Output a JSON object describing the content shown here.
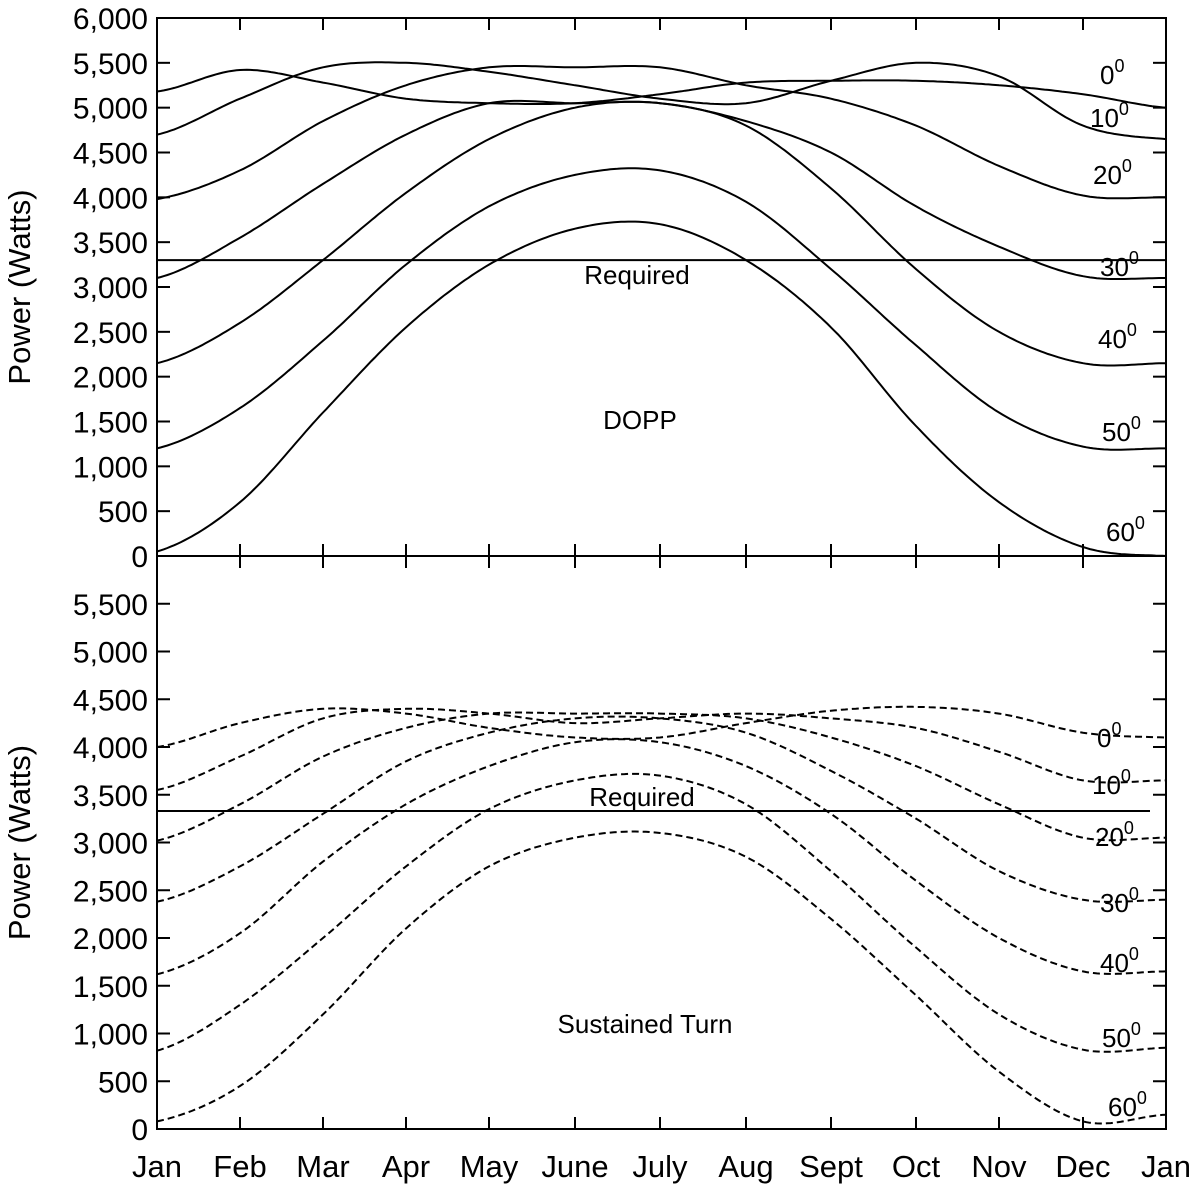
{
  "chart_data": [
    {
      "type": "line",
      "panel": "top",
      "title": "",
      "annotation": "DOPP",
      "required_label": "Required",
      "xlabel": "",
      "ylabel": "Power (Watts)",
      "ylim": [
        0,
        6000
      ],
      "yticks": [
        0,
        500,
        1000,
        1500,
        2000,
        2500,
        3000,
        3500,
        4000,
        4500,
        5000,
        5500,
        6000
      ],
      "ytick_labels": [
        "0",
        "500",
        "1,000",
        "1,500",
        "2,000",
        "2,500",
        "3,000",
        "3,500",
        "4,000",
        "4,500",
        "5,000",
        "5,500",
        "6,000"
      ],
      "line_style": "solid",
      "required": 3300,
      "x": [
        "Jan",
        "Feb",
        "Mar",
        "Apr",
        "May",
        "June",
        "July",
        "Aug",
        "Sept",
        "Oct",
        "Nov",
        "Dec",
        "Jan"
      ],
      "series": [
        {
          "name": "0",
          "values": [
            5180,
            5420,
            5280,
            5100,
            5050,
            5050,
            5150,
            5280,
            5300,
            5300,
            5250,
            5150,
            5000
          ]
        },
        {
          "name": "10",
          "values": [
            4700,
            5100,
            5450,
            5500,
            5400,
            5250,
            5100,
            5050,
            5300,
            5500,
            5350,
            4800,
            4650
          ]
        },
        {
          "name": "20",
          "values": [
            3980,
            4300,
            4850,
            5250,
            5450,
            5450,
            5450,
            5250,
            5100,
            4800,
            4350,
            4020,
            4000
          ]
        },
        {
          "name": "30",
          "values": [
            3100,
            3550,
            4150,
            4700,
            5050,
            5050,
            5050,
            4850,
            4500,
            3900,
            3450,
            3120,
            3100
          ]
        },
        {
          "name": "40",
          "values": [
            2150,
            2600,
            3300,
            4050,
            4650,
            5000,
            5050,
            4800,
            4100,
            3200,
            2500,
            2150,
            2150
          ]
        },
        {
          "name": "50",
          "values": [
            1200,
            1650,
            2400,
            3250,
            3900,
            4250,
            4300,
            3950,
            3200,
            2350,
            1600,
            1220,
            1200
          ]
        },
        {
          "name": "60",
          "values": [
            50,
            600,
            1600,
            2550,
            3250,
            3650,
            3700,
            3300,
            2550,
            1450,
            600,
            100,
            0
          ]
        }
      ],
      "curve_labels": [
        {
          "text": "0",
          "sup": "0"
        },
        {
          "text": "10",
          "sup": "0"
        },
        {
          "text": "20",
          "sup": "0"
        },
        {
          "text": "30",
          "sup": "0"
        },
        {
          "text": "40",
          "sup": "0"
        },
        {
          "text": "50",
          "sup": "0"
        },
        {
          "text": "60",
          "sup": "0"
        }
      ]
    },
    {
      "type": "line",
      "panel": "bottom",
      "title": "",
      "annotation": "Sustained Turn",
      "required_label": "Required",
      "xlabel": "",
      "ylabel": "Power (Watts)",
      "ylim": [
        0,
        6000
      ],
      "yticks": [
        0,
        500,
        1000,
        1500,
        2000,
        2500,
        3000,
        3500,
        4000,
        4500,
        5000,
        5500
      ],
      "ytick_labels": [
        "0",
        "500",
        "1,000",
        "1,500",
        "2,000",
        "2,500",
        "3,000",
        "3,500",
        "4,000",
        "4,500",
        "5,000",
        "5,500"
      ],
      "line_style": "dashed",
      "required": 3330,
      "x": [
        "Jan",
        "Feb",
        "Mar",
        "Apr",
        "May",
        "June",
        "July",
        "Aug",
        "Sept",
        "Oct",
        "Nov",
        "Dec",
        "Jan"
      ],
      "series": [
        {
          "name": "0",
          "values": [
            4000,
            4250,
            4400,
            4350,
            4200,
            4100,
            4100,
            4250,
            4380,
            4420,
            4350,
            4150,
            4100
          ]
        },
        {
          "name": "10",
          "values": [
            3550,
            3900,
            4300,
            4400,
            4350,
            4250,
            4300,
            4350,
            4300,
            4200,
            3950,
            3650,
            3650
          ]
        },
        {
          "name": "20",
          "values": [
            3020,
            3400,
            3900,
            4200,
            4350,
            4350,
            4350,
            4300,
            4100,
            3800,
            3400,
            3050,
            3050
          ]
        },
        {
          "name": "30",
          "values": [
            2380,
            2750,
            3300,
            3850,
            4150,
            4300,
            4300,
            4150,
            3750,
            3250,
            2700,
            2400,
            2400
          ]
        },
        {
          "name": "40",
          "values": [
            1620,
            2050,
            2800,
            3400,
            3800,
            4050,
            4050,
            3800,
            3300,
            2600,
            2000,
            1650,
            1650
          ]
        },
        {
          "name": "50",
          "values": [
            820,
            1300,
            2000,
            2750,
            3350,
            3650,
            3700,
            3400,
            2700,
            1900,
            1200,
            830,
            850
          ]
        },
        {
          "name": "60",
          "values": [
            80,
            450,
            1200,
            2100,
            2750,
            3050,
            3100,
            2850,
            2200,
            1400,
            600,
            80,
            150
          ]
        }
      ],
      "curve_labels": [
        {
          "text": "0",
          "sup": "0"
        },
        {
          "text": "10",
          "sup": "0"
        },
        {
          "text": "20",
          "sup": "0"
        },
        {
          "text": "30",
          "sup": "0"
        },
        {
          "text": "40",
          "sup": "0"
        },
        {
          "text": "50",
          "sup": "0"
        },
        {
          "text": "60",
          "sup": "0"
        }
      ]
    }
  ]
}
